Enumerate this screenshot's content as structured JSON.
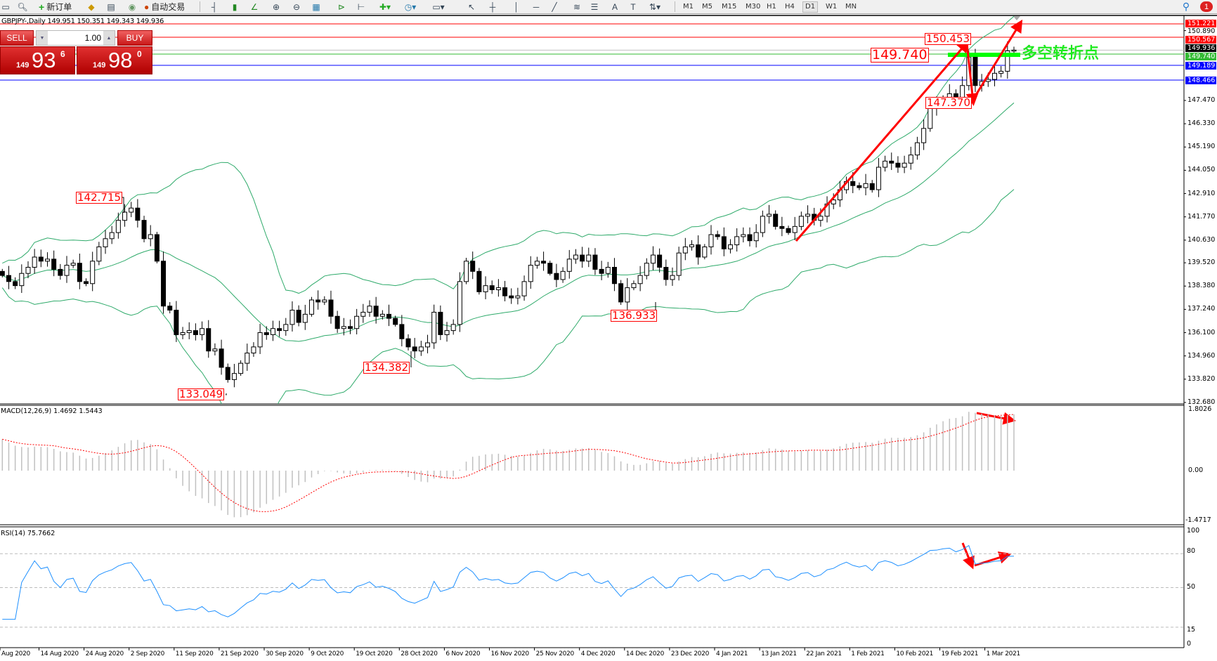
{
  "toolbar": {
    "new_order_label": "新订单",
    "auto_trading_label": "自动交易",
    "timeframes": [
      "M1",
      "M5",
      "M15",
      "M30",
      "H1",
      "H4",
      "D1",
      "W1",
      "MN"
    ],
    "active_timeframe": "D1",
    "notification_count": "1"
  },
  "chart": {
    "title": "GBPJPY-,Daily  149.951 150.351 149.343 149.936",
    "annotation_text": "多空转折点",
    "annotation_color": "#00ff00"
  },
  "trade_panel": {
    "sell_label": "SELL",
    "buy_label": "BUY",
    "lot": "1.00",
    "sell_prefix": "149",
    "sell_main": "93",
    "sell_sup": "6",
    "buy_prefix": "149",
    "buy_main": "98",
    "buy_sup": "0"
  },
  "price_labels": [
    "142.715",
    "133.049",
    "134.382",
    "136.933",
    "149.740",
    "150.453",
    "147.370"
  ],
  "level_lines": [
    {
      "price": 151.221,
      "label": "151.221",
      "color": "#ff0000"
    },
    {
      "price": 150.567,
      "label": "150.567",
      "color": "#ff0000"
    },
    {
      "price": 149.936,
      "label": "149.936",
      "color": "#000000"
    },
    {
      "price": 149.74,
      "label": "149.740",
      "color": "#33bb33"
    },
    {
      "price": 149.189,
      "label": "149.189",
      "color": "#0000ff"
    },
    {
      "price": 148.466,
      "label": "148.466",
      "color": "#0000ff"
    }
  ],
  "indicators": {
    "macd_label": "MACD(12,26,9) 1.4692 1.5443",
    "rsi_label": "RSI(14) 75.7662"
  },
  "chart_data": {
    "type": "candlestick",
    "symbol": "GBPJPY-",
    "timeframe": "Daily",
    "y_ticks": [
      "150.890",
      "147.470",
      "146.330",
      "145.190",
      "144.050",
      "142.910",
      "141.770",
      "140.630",
      "139.520",
      "138.380",
      "137.240",
      "136.100",
      "134.960",
      "133.820",
      "132.680"
    ],
    "ylim": [
      132.68,
      151.5
    ],
    "macd_ticks": [
      "1.8026",
      "0.00",
      "-1.4717"
    ],
    "macd_range": [
      -1.4717,
      1.8026
    ],
    "rsi_ticks": [
      "100",
      "80",
      "50",
      "15",
      "0"
    ],
    "rsi_levels": [
      80,
      50,
      15
    ],
    "x_labels": [
      "Aug 2020",
      "14 Aug 2020",
      "24 Aug 2020",
      "2 Sep 2020",
      "11 Sep 2020",
      "21 Sep 2020",
      "30 Sep 2020",
      "9 Oct 2020",
      "19 Oct 2020",
      "28 Oct 2020",
      "6 Nov 2020",
      "16 Nov 2020",
      "25 Nov 2020",
      "4 Dec 2020",
      "14 Dec 2020",
      "23 Dec 2020",
      "4 Jan 2021",
      "13 Jan 2021",
      "22 Jan 2021",
      "1 Feb 2021",
      "10 Feb 2021",
      "19 Feb 2021",
      "1 Mar 2021"
    ],
    "closes": [
      138.9,
      138.6,
      138.4,
      139.0,
      139.3,
      139.8,
      139.6,
      139.7,
      139.2,
      138.9,
      139.4,
      139.5,
      138.6,
      138.5,
      139.6,
      140.3,
      140.7,
      141.0,
      141.6,
      142.0,
      142.2,
      141.6,
      140.7,
      140.9,
      139.6,
      137.4,
      137.2,
      136.0,
      136.1,
      136.2,
      136.0,
      136.3,
      135.2,
      135.3,
      134.4,
      133.8,
      134.1,
      134.6,
      135.1,
      135.4,
      136.1,
      136.0,
      136.3,
      136.2,
      136.5,
      137.2,
      136.6,
      137.0,
      137.7,
      137.6,
      137.7,
      136.9,
      136.3,
      136.4,
      136.3,
      136.9,
      137.1,
      137.4,
      136.9,
      137.0,
      136.8,
      136.5,
      135.8,
      135.4,
      135.2,
      135.4,
      135.6,
      137.1,
      136.0,
      136.2,
      136.5,
      138.6,
      139.6,
      139.1,
      138.1,
      138.4,
      138.2,
      138.3,
      137.9,
      137.8,
      137.9,
      138.6,
      139.4,
      139.6,
      139.5,
      139.0,
      138.7,
      139.1,
      139.7,
      139.9,
      139.6,
      139.9,
      139.2,
      139.0,
      139.3,
      138.5,
      137.6,
      138.3,
      138.5,
      138.9,
      139.5,
      139.9,
      139.3,
      138.7,
      138.9,
      140.0,
      140.3,
      140.4,
      139.8,
      140.3,
      140.9,
      140.8,
      140.2,
      140.4,
      140.8,
      140.9,
      140.6,
      141.0,
      141.8,
      141.9,
      141.3,
      141.2,
      141.0,
      141.3,
      141.8,
      141.9,
      141.6,
      141.8,
      142.4,
      142.6,
      143.1,
      143.5,
      143.3,
      143.2,
      143.4,
      143.1,
      144.2,
      144.5,
      144.4,
      144.2,
      144.4,
      144.8,
      145.4,
      146.1,
      147.1,
      147.2,
      147.6,
      147.8,
      147.6,
      148.2,
      149.6,
      148.2,
      148.4,
      148.5,
      148.8,
      148.9,
      149.9,
      149.936
    ],
    "indicators": [
      "Bollinger Bands(20,2)",
      "MACD(12,26,9)",
      "RSI(14)"
    ]
  }
}
